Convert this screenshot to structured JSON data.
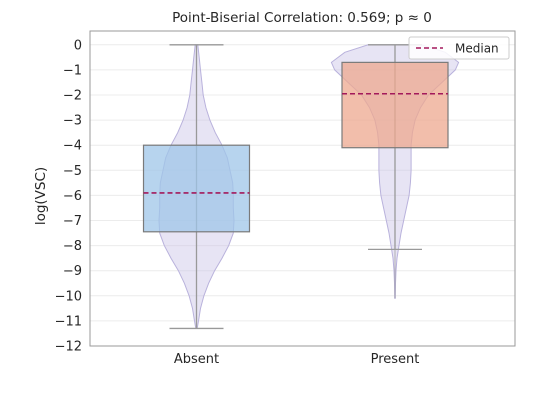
{
  "chart_data": {
    "type": "box",
    "title": "Point-Biserial Correlation: 0.569; p ≈ 0",
    "xlabel": "",
    "ylabel": "log(VSC)",
    "ylim": [
      -12,
      0.55
    ],
    "yticks": [
      0,
      -1,
      -2,
      -3,
      -4,
      -5,
      -6,
      -7,
      -8,
      -9,
      -10,
      -11,
      -12
    ],
    "ytick_labels": [
      "0",
      "−1",
      "−2",
      "−3",
      "−4",
      "−5",
      "−6",
      "−7",
      "−8",
      "−9",
      "−10",
      "−11",
      "−12"
    ],
    "categories": [
      "Absent",
      "Present"
    ],
    "grid": true,
    "legend": {
      "position": "top-right",
      "entries": [
        "Median"
      ]
    },
    "colors": {
      "violin": "#c9c3e6",
      "violin_edge": "#b9b2dc",
      "absent_box": "#9fc5e8",
      "present_box": "#eea88f",
      "box_edge": "#7a7a7a",
      "median": "#a3195b",
      "whisker": "#999999"
    },
    "boxes": [
      {
        "category": "Absent",
        "q1": -7.45,
        "median": -5.9,
        "q3": -4.0,
        "whisker_low": -11.3,
        "whisker_high": 0,
        "data_min": -11.3,
        "data_max": 0
      },
      {
        "category": "Present",
        "q1": -4.1,
        "median": -1.95,
        "q3": -0.7,
        "whisker_low": -8.15,
        "whisker_high": 0,
        "data_min": -10.1,
        "data_max": 0
      }
    ],
    "violins": [
      {
        "category": "Absent",
        "density": [
          [
            0,
            0.02
          ],
          [
            -0.5,
            0.04
          ],
          [
            -1,
            0.06
          ],
          [
            -1.5,
            0.08
          ],
          [
            -2,
            0.1
          ],
          [
            -2.5,
            0.14
          ],
          [
            -3,
            0.2
          ],
          [
            -3.5,
            0.28
          ],
          [
            -4,
            0.38
          ],
          [
            -4.5,
            0.46
          ],
          [
            -5,
            0.5
          ],
          [
            -5.5,
            0.54
          ],
          [
            -6,
            0.55
          ],
          [
            -6.5,
            0.55
          ],
          [
            -7,
            0.56
          ],
          [
            -7.5,
            0.55
          ],
          [
            -8,
            0.48
          ],
          [
            -8.5,
            0.38
          ],
          [
            -9,
            0.27
          ],
          [
            -9.5,
            0.18
          ],
          [
            -10,
            0.11
          ],
          [
            -10.5,
            0.06
          ],
          [
            -11,
            0.03
          ],
          [
            -11.3,
            0.01
          ]
        ]
      },
      {
        "category": "Present",
        "density": [
          [
            0,
            0.4
          ],
          [
            -0.3,
            0.75
          ],
          [
            -0.7,
            0.95
          ],
          [
            -1,
            0.9
          ],
          [
            -1.5,
            0.7
          ],
          [
            -2,
            0.5
          ],
          [
            -2.5,
            0.38
          ],
          [
            -3,
            0.3
          ],
          [
            -3.5,
            0.26
          ],
          [
            -4,
            0.24
          ],
          [
            -4.5,
            0.24
          ],
          [
            -5,
            0.24
          ],
          [
            -5.5,
            0.23
          ],
          [
            -6,
            0.21
          ],
          [
            -6.5,
            0.17
          ],
          [
            -7,
            0.13
          ],
          [
            -7.5,
            0.09
          ],
          [
            -8,
            0.06
          ],
          [
            -8.5,
            0.03
          ],
          [
            -9,
            0.015
          ],
          [
            -9.5,
            0.008
          ],
          [
            -10.1,
            0.004
          ]
        ]
      }
    ]
  }
}
